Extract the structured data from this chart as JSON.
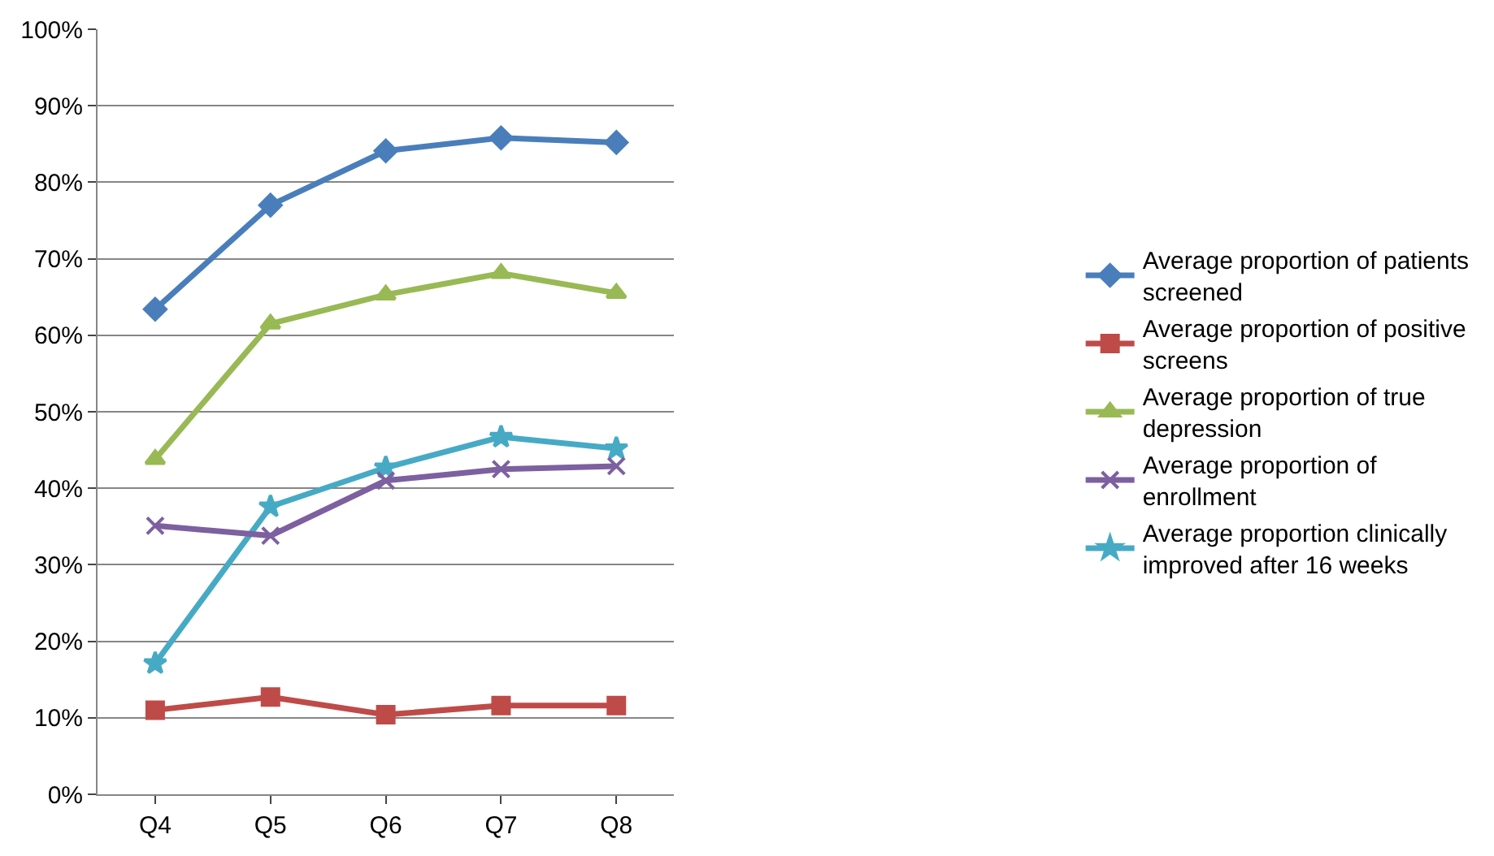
{
  "chart_data": {
    "type": "line",
    "categories": [
      "Q4",
      "Q5",
      "Q6",
      "Q7",
      "Q8"
    ],
    "series": [
      {
        "name": "Average proportion of patients screened",
        "color": "#4a7ebb",
        "marker": "diamond",
        "values": [
          63.4,
          77,
          84.1,
          85.8,
          85.2
        ]
      },
      {
        "name": "Average proportion of positive screens",
        "color": "#be4b48",
        "marker": "square",
        "values": [
          11,
          12.7,
          10.4,
          11.6,
          11.6
        ]
      },
      {
        "name": "Average proportion of true depression",
        "color": "#98b954",
        "marker": "triangle",
        "values": [
          43.8,
          61.5,
          65.3,
          68.1,
          65.5
        ]
      },
      {
        "name": "Average proportion of enrollment",
        "color": "#7d60a0",
        "marker": "cross",
        "values": [
          35.1,
          33.8,
          41,
          42.5,
          42.9
        ]
      },
      {
        "name": "Average proportion clinically improved after 16 weeks",
        "color": "#46aac5",
        "marker": "star",
        "values": [
          17.1,
          37.6,
          42.7,
          46.7,
          45.2
        ]
      }
    ],
    "ylim": [
      0,
      100
    ],
    "yticks": [
      {
        "value": 0,
        "label": "0%"
      },
      {
        "value": 10,
        "label": "10%"
      },
      {
        "value": 20,
        "label": "20%"
      },
      {
        "value": 30,
        "label": "30%"
      },
      {
        "value": 40,
        "label": "40%"
      },
      {
        "value": 50,
        "label": "50%"
      },
      {
        "value": 60,
        "label": "60%"
      },
      {
        "value": 70,
        "label": "70%"
      },
      {
        "value": 80,
        "label": "80%"
      },
      {
        "value": 90,
        "label": "90%"
      },
      {
        "value": 100,
        "label": "100%"
      }
    ],
    "grid": "y",
    "legend": "right",
    "line_style": "solid"
  }
}
